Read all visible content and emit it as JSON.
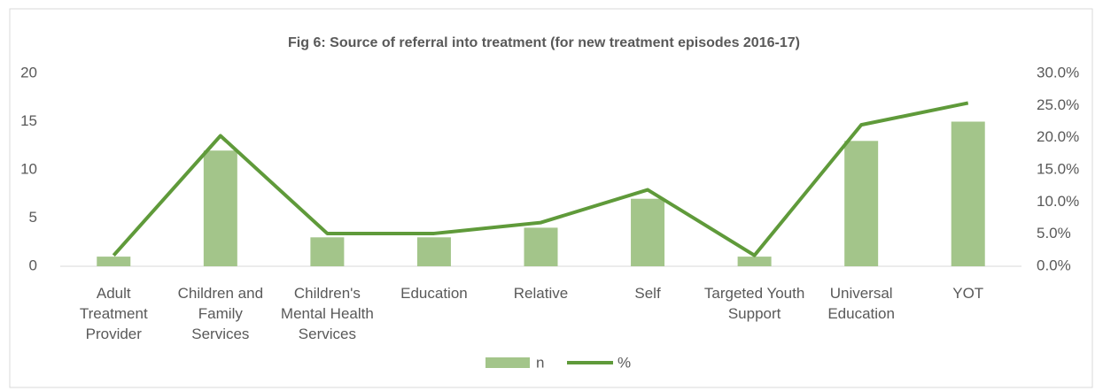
{
  "chart_data": {
    "type": "bar-line",
    "title": "Fig 6: Source of referral into treatment (for new treatment episodes 2016-17)",
    "categories": [
      "Adult Treatment Provider",
      "Children and Family Services",
      "Children's Mental Health Services",
      "Education",
      "Relative",
      "Self",
      "Targeted Youth Support",
      "Universal Education",
      "YOT"
    ],
    "series": [
      {
        "name": "n",
        "type": "bar",
        "color": "#a3c58a",
        "axis": "y",
        "values": [
          1,
          12,
          3,
          3,
          4,
          7,
          1,
          13,
          15
        ]
      },
      {
        "name": "%",
        "type": "line",
        "color": "#5f9a3a",
        "axis": "y2",
        "values": [
          1.7,
          20.3,
          5.1,
          5.1,
          6.8,
          11.9,
          1.7,
          22.0,
          25.4
        ]
      }
    ],
    "ylim": [
      0,
      20
    ],
    "yticks": [
      0,
      5,
      10,
      15,
      20
    ],
    "y2lim": [
      0,
      30
    ],
    "y2ticks": [
      {
        "value": 0,
        "label": "0.0%"
      },
      {
        "value": 5,
        "label": "5.0%"
      },
      {
        "value": 10,
        "label": "10.0%"
      },
      {
        "value": 15,
        "label": "15.0%"
      },
      {
        "value": 20,
        "label": "20.0%"
      },
      {
        "value": 25,
        "label": "25.0%"
      },
      {
        "value": 30,
        "label": "30.0%"
      }
    ],
    "grid": false,
    "legend": "bottom"
  }
}
